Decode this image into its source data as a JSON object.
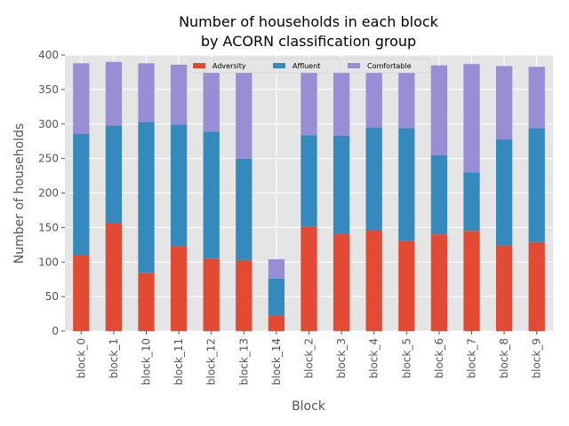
{
  "chart_data": {
    "type": "bar",
    "stacked": true,
    "title": [
      "Number of households in each block",
      "by ACORN classification group"
    ],
    "xlabel": "Block",
    "ylabel": "Number of households",
    "ylim": [
      0,
      400
    ],
    "yticks": [
      0,
      50,
      100,
      150,
      200,
      250,
      300,
      350,
      400
    ],
    "grid": true,
    "legend_position": "top-center",
    "categories": [
      "block_0",
      "block_1",
      "block_10",
      "block_11",
      "block_12",
      "block_13",
      "block_14",
      "block_2",
      "block_3",
      "block_4",
      "block_5",
      "block_6",
      "block_7",
      "block_8",
      "block_9"
    ],
    "series": [
      {
        "name": "Adversity",
        "color": "#E24A33",
        "values": [
          110,
          157,
          84,
          123,
          105,
          103,
          22,
          151,
          141,
          146,
          131,
          140,
          145,
          124,
          129
        ]
      },
      {
        "name": "Affluent",
        "color": "#348ABD",
        "values": [
          176,
          141,
          219,
          176,
          184,
          147,
          54,
          133,
          142,
          149,
          163,
          115,
          85,
          154,
          165
        ]
      },
      {
        "name": "Comfortable",
        "color": "#988ED5",
        "values": [
          102,
          92,
          85,
          87,
          97,
          135,
          28,
          104,
          104,
          92,
          93,
          130,
          157,
          106,
          89
        ]
      }
    ]
  }
}
